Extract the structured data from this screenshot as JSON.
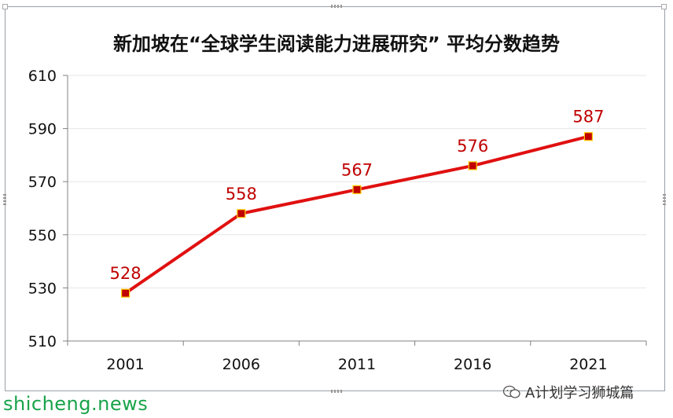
{
  "title": "新加坡在“全球学生阅读能力进展研究” 平均分数趋势",
  "watermark_text": "shicheng.news",
  "brand_text": "A计划学习狮城篇",
  "colors": {
    "line": "#e01010",
    "marker": "#c00000",
    "label": "#c00000",
    "axis": "#808080",
    "grid": "#e6e6e6",
    "watermark": "#1aa34a"
  },
  "chart_data": {
    "type": "line",
    "title": "新加坡在“全球学生阅读能力进展研究” 平均分数趋势",
    "categories": [
      "2001",
      "2006",
      "2011",
      "2016",
      "2021"
    ],
    "series": [
      {
        "name": "",
        "values": [
          528,
          558,
          567,
          576,
          587
        ]
      }
    ],
    "xlabel": "",
    "ylabel": "",
    "ylim": [
      510,
      610
    ],
    "yticks": [
      "510",
      "530",
      "550",
      "570",
      "590",
      "610"
    ],
    "grid": true,
    "data_labels": [
      "528",
      "558",
      "567",
      "576",
      "587"
    ],
    "legend": "none"
  }
}
